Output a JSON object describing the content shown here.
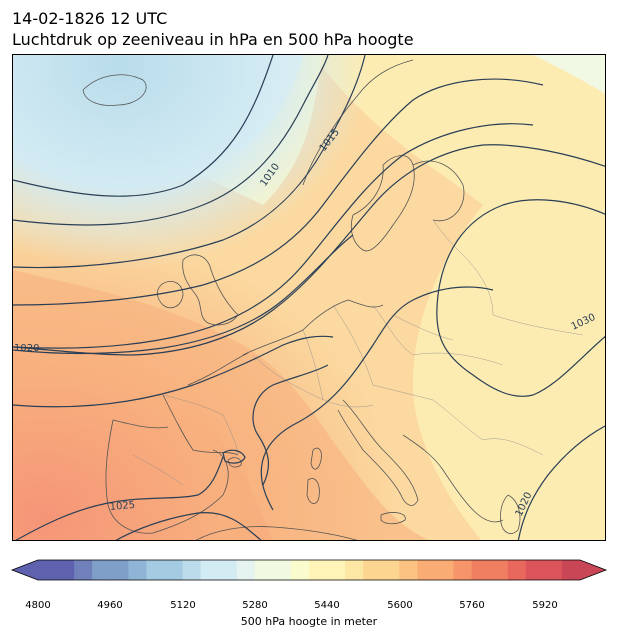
{
  "header": {
    "datetime": "14-02-1826 12 UTC",
    "subtitle": "Luchtdruk op zeeniveau in hPa en 500 hPa hoogte"
  },
  "map": {
    "isobar_labels": [
      "1010",
      "1015",
      "1020",
      "1025",
      "1030",
      "1020"
    ]
  },
  "colorbar": {
    "label": "500 hPa hoogte in meter",
    "ticks": [
      "4800",
      "4960",
      "5120",
      "5280",
      "5440",
      "5600",
      "5760",
      "5920"
    ],
    "range": [
      4800,
      6000
    ],
    "step": 40,
    "extend": "both",
    "colormap": "RdYlBu_r"
  }
}
